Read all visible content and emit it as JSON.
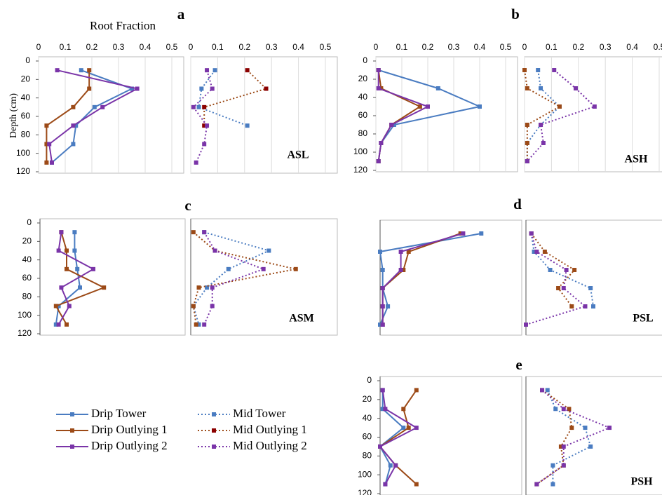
{
  "chart_data": [
    {
      "type": "line",
      "panel": "a",
      "xlabel": "Root Fraction",
      "ylabel": "Depth (cm)",
      "y": [
        10,
        30,
        50,
        70,
        90,
        110
      ],
      "xlim": [
        0,
        0.5
      ],
      "xticks": [
        0,
        0.1,
        0.2,
        0.3,
        0.4,
        0.5
      ],
      "ylim": [
        0,
        120
      ],
      "yticks": [
        0,
        20,
        40,
        60,
        80,
        100,
        120
      ],
      "series": [
        {
          "name": "Drip Tower",
          "color": "#4a7cc1",
          "line_style": "solid",
          "values": [
            0.16,
            0.35,
            0.21,
            0.14,
            0.13,
            0.05
          ]
        },
        {
          "name": "Drip Outlying 1",
          "color": "#9c4a17",
          "line_style": "solid",
          "values": [
            0.19,
            0.19,
            0.13,
            0.03,
            0.03,
            0.03
          ]
        },
        {
          "name": "Drip Outlying 2",
          "color": "#7a34a8",
          "line_style": "solid",
          "values": [
            0.07,
            0.37,
            0.24,
            0.13,
            0.04,
            0.05
          ]
        }
      ]
    },
    {
      "type": "line",
      "site": "ASL",
      "y": [
        10,
        30,
        50,
        70,
        90,
        110
      ],
      "xlim": [
        0,
        0.5
      ],
      "xticks": [
        0,
        0.1,
        0.2,
        0.3,
        0.4,
        0.5
      ],
      "ylim": [
        0,
        120
      ],
      "series": [
        {
          "name": "Mid Tower",
          "color": "#4a7cc1",
          "line_style": "dotted",
          "values": [
            0.09,
            0.04,
            0.03,
            0.21,
            null,
            null
          ]
        },
        {
          "name": "Mid Outlying 1",
          "color": "#9c4a17",
          "marker_color": "#8b0000",
          "line_style": "dotted",
          "values": [
            0.21,
            0.28,
            0.05,
            0.05,
            null,
            null
          ]
        },
        {
          "name": "Mid Outlying 2",
          "color": "#7a34a8",
          "line_style": "dotted",
          "values": [
            0.06,
            0.08,
            0.01,
            0.06,
            0.05,
            0.02
          ]
        }
      ]
    },
    {
      "type": "line",
      "panel": "b",
      "y": [
        10,
        30,
        50,
        70,
        90,
        110
      ],
      "xlim": [
        0,
        0.5
      ],
      "xticks": [
        0,
        0.1,
        0.2,
        0.3,
        0.4,
        0.5
      ],
      "ylim": [
        0,
        120
      ],
      "yticks": [
        0,
        20,
        40,
        60,
        80,
        100,
        120
      ],
      "series": [
        {
          "color": "#4a7cc1",
          "line_style": "solid",
          "values": [
            0.01,
            0.24,
            0.4,
            0.07,
            0.02,
            0.01
          ]
        },
        {
          "color": "#9c4a17",
          "line_style": "solid",
          "values": [
            0.01,
            0.02,
            0.17,
            0.06,
            0.02,
            0.01
          ]
        },
        {
          "color": "#7a34a8",
          "line_style": "solid",
          "values": [
            0.01,
            0.01,
            0.2,
            0.06,
            0.02,
            0.01
          ]
        }
      ]
    },
    {
      "type": "line",
      "site": "ASH",
      "y": [
        10,
        30,
        50,
        70,
        90,
        110
      ],
      "xlim": [
        0,
        0.5
      ],
      "xticks": [
        0,
        0.1,
        0.2,
        0.3,
        0.4,
        0.5
      ],
      "ylim": [
        0,
        120
      ],
      "series": [
        {
          "color": "#4a7cc1",
          "line_style": "dotted",
          "values": [
            0.05,
            0.06,
            0.13,
            0.06,
            0.01,
            0.01
          ]
        },
        {
          "color": "#9c4a17",
          "line_style": "dotted",
          "values": [
            0.0,
            0.01,
            0.13,
            0.01,
            0.01,
            0.01
          ]
        },
        {
          "color": "#7a34a8",
          "line_style": "dotted",
          "values": [
            0.11,
            0.19,
            0.26,
            0.06,
            0.07,
            0.01
          ]
        }
      ]
    },
    {
      "type": "line",
      "panel": "c",
      "y": [
        10,
        30,
        50,
        70,
        90,
        110
      ],
      "xlim": [
        0,
        0.5
      ],
      "ylim": [
        0,
        120
      ],
      "yticks": [
        0,
        20,
        40,
        60,
        80,
        100,
        120
      ],
      "series": [
        {
          "color": "#4a7cc1",
          "line_style": "solid",
          "values": [
            0.13,
            0.13,
            0.14,
            0.15,
            0.07,
            0.06
          ]
        },
        {
          "color": "#9c4a17",
          "line_style": "solid",
          "values": [
            0.08,
            0.1,
            0.1,
            0.24,
            0.06,
            0.1
          ]
        },
        {
          "color": "#7a34a8",
          "line_style": "solid",
          "values": [
            0.08,
            0.07,
            0.2,
            0.08,
            0.11,
            0.07
          ]
        }
      ]
    },
    {
      "type": "line",
      "site": "ASM",
      "y": [
        10,
        30,
        50,
        70,
        90,
        110
      ],
      "xlim": [
        0,
        0.5
      ],
      "ylim": [
        0,
        120
      ],
      "series": [
        {
          "color": "#4a7cc1",
          "line_style": "dotted",
          "values": [
            0.05,
            0.29,
            0.14,
            0.06,
            0.01,
            0.03
          ]
        },
        {
          "color": "#9c4a17",
          "line_style": "dotted",
          "values": [
            0.01,
            0.09,
            0.39,
            0.03,
            0.01,
            0.02
          ]
        },
        {
          "color": "#7a34a8",
          "line_style": "dotted",
          "values": [
            0.05,
            0.09,
            0.27,
            0.08,
            0.08,
            0.05
          ]
        }
      ]
    },
    {
      "type": "line",
      "panel": "d",
      "y": [
        10,
        30,
        50,
        70,
        90,
        110
      ],
      "xlim": [
        0,
        0.5
      ],
      "ylim": [
        0,
        120
      ],
      "series": [
        {
          "color": "#4a7cc1",
          "line_style": "solid",
          "values": [
            0.39,
            0.0,
            0.01,
            0.01,
            0.03,
            0.0
          ]
        },
        {
          "color": "#9c4a17",
          "line_style": "solid",
          "values": [
            0.31,
            0.11,
            0.09,
            0.01,
            0.01,
            0.01
          ]
        },
        {
          "color": "#7a34a8",
          "line_style": "solid",
          "values": [
            0.32,
            0.08,
            0.08,
            0.01,
            0.01,
            0.01
          ]
        }
      ]
    },
    {
      "type": "line",
      "site": "PSL",
      "y": [
        10,
        30,
        50,
        70,
        90,
        110
      ],
      "xlim": [
        0,
        0.5
      ],
      "ylim": [
        0,
        120
      ],
      "series": [
        {
          "color": "#4a7cc1",
          "line_style": "dotted",
          "values": [
            0.02,
            0.03,
            0.09,
            0.24,
            0.25,
            null
          ]
        },
        {
          "color": "#9c4a17",
          "line_style": "dotted",
          "values": [
            0.02,
            0.07,
            0.18,
            0.12,
            0.17,
            null
          ]
        },
        {
          "color": "#7a34a8",
          "line_style": "dotted",
          "values": [
            0.02,
            0.04,
            0.15,
            0.14,
            0.22,
            0.0
          ]
        }
      ]
    },
    {
      "type": "line",
      "panel": "e",
      "y": [
        10,
        30,
        50,
        70,
        90,
        110
      ],
      "xlim": [
        0,
        0.5
      ],
      "ylim": [
        0,
        120
      ],
      "yticks": [
        0,
        20,
        40,
        60,
        80,
        100,
        120
      ],
      "series": [
        {
          "color": "#4a7cc1",
          "line_style": "solid",
          "values": [
            0.01,
            0.01,
            0.09,
            0.0,
            0.04,
            0.02
          ]
        },
        {
          "color": "#9c4a17",
          "line_style": "solid",
          "values": [
            0.14,
            0.09,
            0.11,
            0.0,
            0.06,
            0.14
          ]
        },
        {
          "color": "#7a34a8",
          "line_style": "solid",
          "values": [
            0.01,
            0.02,
            0.14,
            0.0,
            0.06,
            0.02
          ]
        }
      ]
    },
    {
      "type": "line",
      "site": "PSH",
      "y": [
        10,
        30,
        50,
        70,
        90,
        110
      ],
      "xlim": [
        0,
        0.5
      ],
      "ylim": [
        0,
        120
      ],
      "series": [
        {
          "color": "#4a7cc1",
          "line_style": "dotted",
          "values": [
            0.08,
            0.11,
            0.22,
            0.24,
            0.1,
            0.1
          ]
        },
        {
          "color": "#9c4a17",
          "line_style": "dotted",
          "values": [
            0.06,
            0.16,
            0.17,
            0.13,
            0.14,
            0.04
          ]
        },
        {
          "color": "#7a34a8",
          "line_style": "dotted",
          "values": [
            0.06,
            0.14,
            0.31,
            0.14,
            0.14,
            0.04
          ]
        }
      ]
    }
  ]
}
